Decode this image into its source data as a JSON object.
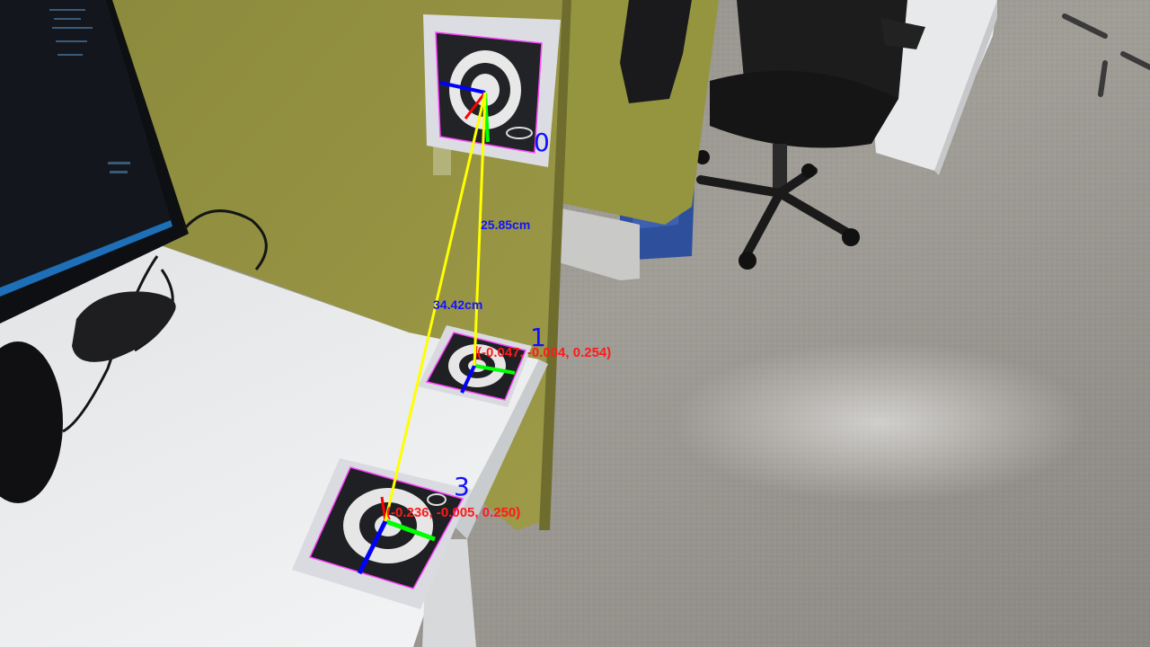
{
  "markers": [
    {
      "id": "0"
    },
    {
      "id": "1",
      "pose": "(-0.047, -0.004, 0.254)"
    },
    {
      "id": "3",
      "pose": "(-0.236, -0.005, 0.250)"
    }
  ],
  "distances": {
    "d_0_1": "25.85cm",
    "d_0_3": "34.42cm"
  },
  "colors": {
    "link_line": "#ffff00",
    "axis_x": "#ff0000",
    "axis_y": "#00ff00",
    "axis_z": "#0000ff",
    "marker_border_pink": "#ff44ff",
    "id_text": "#1010ff",
    "distance_text": "#1414ff",
    "pose_text": "#ff1a1a"
  }
}
